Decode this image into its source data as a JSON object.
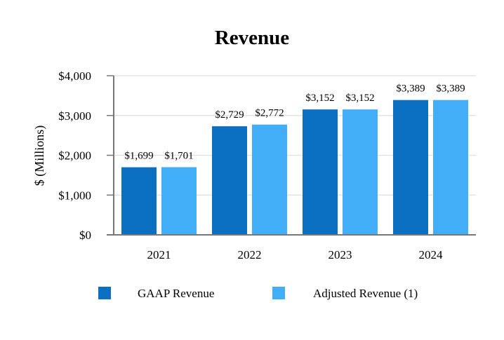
{
  "chart_data": {
    "type": "bar",
    "title": "Revenue",
    "xlabel": "",
    "ylabel": "$ (Millions)",
    "ylim": [
      0,
      4000
    ],
    "yticks": [
      0,
      1000,
      2000,
      3000,
      4000
    ],
    "ytick_labels": [
      "$0",
      "$1,000",
      "$2,000",
      "$3,000",
      "$4,000"
    ],
    "grid": true,
    "legend_position": "bottom",
    "categories": [
      "2021",
      "2022",
      "2023",
      "2024"
    ],
    "series": [
      {
        "name": "GAAP Revenue",
        "color": "#0b6fc2",
        "values": [
          1699,
          2729,
          3152,
          3389
        ],
        "labels": [
          "$1,699",
          "$2,729",
          "$3,152",
          "$3,389"
        ]
      },
      {
        "name": "Adjusted Revenue (1)",
        "color": "#42aef8",
        "values": [
          1701,
          2772,
          3152,
          3389
        ],
        "labels": [
          "$1,701",
          "$2,772",
          "$3,152",
          "$3,389"
        ]
      }
    ]
  }
}
